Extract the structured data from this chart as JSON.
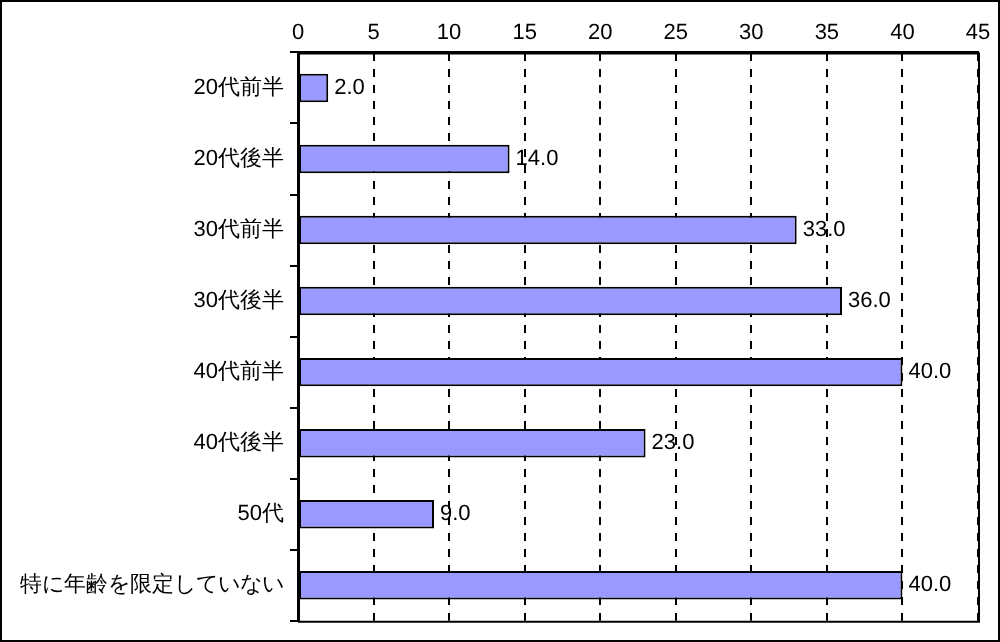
{
  "chart_data": {
    "type": "bar",
    "orientation": "horizontal",
    "categories": [
      "20代前半",
      "20代後半",
      "30代前半",
      "30代後半",
      "40代前半",
      "40代後半",
      "50代",
      "特に年齢を限定していない"
    ],
    "values": [
      2,
      14,
      33,
      36,
      40,
      23,
      9,
      40
    ],
    "value_labels": [
      "2.0",
      "14.0",
      "33.0",
      "36.0",
      "40.0",
      "23.0",
      "9.0",
      "40.0"
    ],
    "color": "#9999ff",
    "xlim": [
      0,
      45
    ],
    "xticks": [
      0,
      5,
      10,
      15,
      20,
      25,
      30,
      35,
      40,
      45
    ],
    "grid": "x",
    "legend": false
  }
}
